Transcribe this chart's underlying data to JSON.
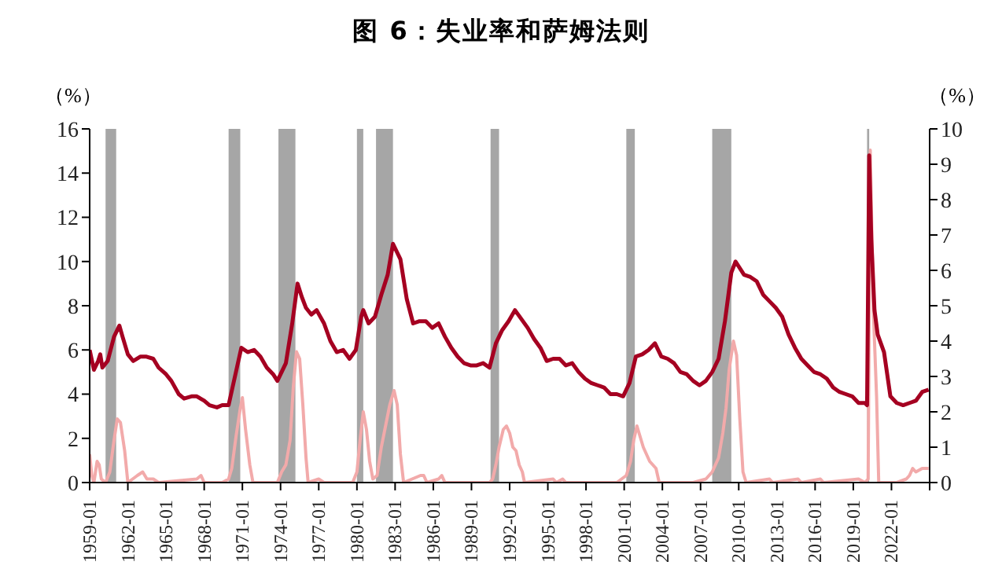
{
  "chart_data": {
    "type": "line",
    "title": "图 6：失业率和萨姆法则",
    "ylabel": "（%）",
    "y2label": "（%）",
    "xlim": [
      "1959-01",
      "2025-01"
    ],
    "xticks": [
      "1959-01",
      "1962-01",
      "1965-01",
      "1968-01",
      "1971-01",
      "1974-01",
      "1977-01",
      "1980-01",
      "1983-01",
      "1986-01",
      "1989-01",
      "1992-01",
      "1995-01",
      "1998-01",
      "2001-01",
      "2004-01",
      "2007-01",
      "2010-01",
      "2013-01",
      "2016-01",
      "2019-01",
      "2022-01",
      {
        "value": "2025-01",
        "label": null
      }
    ],
    "ylim": [
      0,
      16
    ],
    "yticks": [
      0,
      2,
      4,
      6,
      8,
      10,
      12,
      14,
      16
    ],
    "y2lim": [
      0,
      10
    ],
    "y2ticks": [
      0,
      1,
      2,
      3,
      4,
      5,
      6,
      7,
      8,
      9,
      10
    ],
    "grid": false,
    "bands": [
      {
        "axis": "x",
        "from": "1960-04",
        "to": "1961-02",
        "label": null,
        "color": "#a6a6a6"
      },
      {
        "axis": "x",
        "from": "1969-12",
        "to": "1970-11",
        "label": null,
        "color": "#a6a6a6"
      },
      {
        "axis": "x",
        "from": "1973-11",
        "to": "1975-03",
        "label": null,
        "color": "#a6a6a6"
      },
      {
        "axis": "x",
        "from": "1980-01",
        "to": "1980-07",
        "label": null,
        "color": "#a6a6a6"
      },
      {
        "axis": "x",
        "from": "1981-07",
        "to": "1982-11",
        "label": null,
        "color": "#a6a6a6"
      },
      {
        "axis": "x",
        "from": "1990-07",
        "to": "1991-03",
        "label": null,
        "color": "#a6a6a6"
      },
      {
        "axis": "x",
        "from": "2001-03",
        "to": "2001-11",
        "label": null,
        "color": "#a6a6a6"
      },
      {
        "axis": "x",
        "from": "2007-12",
        "to": "2009-06",
        "label": null,
        "color": "#a6a6a6"
      },
      {
        "axis": "x",
        "from": "2020-02",
        "to": "2020-04",
        "label": null,
        "color": "#a6a6a6"
      }
    ],
    "series": [
      {
        "axis": "y2",
        "color": "#f2aaaa",
        "x": [
          "1959-01",
          "1959-03",
          "1959-05",
          "1959-08",
          "1959-10",
          "1959-12",
          "1960-04",
          "1960-08",
          "1960-12",
          "1961-03",
          "1961-06",
          "1961-10",
          "1962-01",
          "1962-10",
          "1963-03",
          "1963-07",
          "1964-01",
          "1964-06",
          "1967-06",
          "1967-10",
          "1968-01",
          "1969-06",
          "1969-12",
          "1970-03",
          "1970-07",
          "1970-11",
          "1971-01",
          "1971-04",
          "1971-08",
          "1971-11",
          "1973-10",
          "1974-02",
          "1974-06",
          "1974-10",
          "1975-01",
          "1975-04",
          "1975-07",
          "1975-10",
          "1976-01",
          "1976-03",
          "1977-01",
          "1977-06",
          "1979-09",
          "1980-01",
          "1980-04",
          "1980-07",
          "1980-10",
          "1981-01",
          "1981-04",
          "1981-08",
          "1981-12",
          "1982-04",
          "1982-08",
          "1982-12",
          "1983-03",
          "1983-06",
          "1983-09",
          "1985-01",
          "1985-04",
          "1985-07",
          "1986-06",
          "1986-09",
          "1986-12",
          "1990-06",
          "1990-09",
          "1990-12",
          "1991-03",
          "1991-07",
          "1991-10",
          "1992-01",
          "1992-04",
          "1992-07",
          "1992-10",
          "1993-01",
          "1993-03",
          "1995-06",
          "1995-09",
          "1996-03",
          "1996-06",
          "2000-06",
          "2001-03",
          "2001-07",
          "2001-10",
          "2002-01",
          "2002-04",
          "2002-07",
          "2002-10",
          "2003-01",
          "2003-04",
          "2003-07",
          "2003-10",
          "2006-06",
          "2007-06",
          "2007-12",
          "2008-06",
          "2008-10",
          "2009-01",
          "2009-04",
          "2009-08",
          "2009-11",
          "2010-02",
          "2010-05",
          "2010-08",
          "2012-06",
          "2012-09",
          "2014-09",
          "2014-12",
          "2016-06",
          "2016-09",
          "2019-06",
          "2019-12",
          "2020-03",
          "2020-05",
          "2020-08",
          "2020-11",
          "2021-01",
          "2022-06",
          "2023-03",
          "2023-06",
          "2023-09",
          "2023-12",
          "2024-06",
          "2024-12"
        ],
        "values": [
          0.8,
          0.2,
          0,
          0.6,
          0.5,
          0.1,
          0,
          0.3,
          1.2,
          1.8,
          1.7,
          0.9,
          0,
          0.2,
          0.3,
          0.1,
          0.1,
          0,
          0.1,
          0.2,
          0,
          0,
          0.1,
          0.4,
          1.3,
          2.1,
          2.4,
          1.5,
          0.5,
          0,
          0,
          0.3,
          0.5,
          1.2,
          2.7,
          3.7,
          3.5,
          2.2,
          0.7,
          0,
          0.1,
          0,
          0,
          0.3,
          1.2,
          2.0,
          1.5,
          0.6,
          0.1,
          0.2,
          1.0,
          1.6,
          2.2,
          2.6,
          2.2,
          0.8,
          0,
          0.2,
          0.2,
          0,
          0.1,
          0.2,
          0,
          0,
          0.1,
          0.5,
          1.0,
          1.5,
          1.6,
          1.4,
          1.0,
          0.9,
          0.5,
          0.3,
          0,
          0.1,
          0,
          0.1,
          0,
          0,
          0.2,
          0.6,
          1.2,
          1.6,
          1.3,
          1.0,
          0.8,
          0.6,
          0.5,
          0.4,
          0,
          0,
          0.1,
          0.3,
          0.7,
          1.4,
          2.1,
          3.2,
          4.0,
          3.6,
          1.8,
          0.3,
          0,
          0.1,
          0,
          0.1,
          0,
          0.1,
          0,
          0.1,
          0,
          0.1,
          9.4,
          4.8,
          2.4,
          0,
          0,
          0.1,
          0.2,
          0.4,
          0.3,
          0.4,
          0.4
        ]
      },
      {
        "color": "#a50021",
        "x": [
          "1959-01",
          "1959-05",
          "1959-09",
          "1959-11",
          "1960-01",
          "1960-06",
          "1960-12",
          "1961-05",
          "1961-08",
          "1962-01",
          "1962-06",
          "1963-01",
          "1963-06",
          "1964-01",
          "1964-06",
          "1965-01",
          "1965-06",
          "1966-01",
          "1966-06",
          "1967-01",
          "1967-06",
          "1968-01",
          "1968-06",
          "1969-01",
          "1969-06",
          "1969-12",
          "1970-06",
          "1970-12",
          "1971-06",
          "1971-12",
          "1972-06",
          "1972-12",
          "1973-06",
          "1973-10",
          "1974-06",
          "1974-12",
          "1975-05",
          "1975-09",
          "1976-01",
          "1976-06",
          "1976-11",
          "1977-06",
          "1977-12",
          "1978-06",
          "1978-12",
          "1979-06",
          "1979-12",
          "1980-05",
          "1980-07",
          "1980-12",
          "1981-06",
          "1981-12",
          "1982-06",
          "1982-11",
          "1983-06",
          "1983-12",
          "1984-06",
          "1984-12",
          "1985-06",
          "1985-12",
          "1986-06",
          "1986-12",
          "1987-06",
          "1987-12",
          "1988-06",
          "1988-12",
          "1989-06",
          "1989-12",
          "1990-06",
          "1990-12",
          "1991-06",
          "1991-12",
          "1992-06",
          "1992-12",
          "1993-06",
          "1993-12",
          "1994-06",
          "1994-12",
          "1995-06",
          "1995-12",
          "1996-06",
          "1996-12",
          "1997-06",
          "1997-12",
          "1998-06",
          "1998-12",
          "1999-06",
          "1999-12",
          "2000-06",
          "2000-12",
          "2001-06",
          "2001-12",
          "2002-06",
          "2002-12",
          "2003-06",
          "2003-12",
          "2004-06",
          "2004-12",
          "2005-06",
          "2005-12",
          "2006-06",
          "2006-12",
          "2007-06",
          "2007-12",
          "2008-06",
          "2008-12",
          "2009-06",
          "2009-10",
          "2010-06",
          "2010-12",
          "2011-06",
          "2011-12",
          "2012-06",
          "2012-12",
          "2013-06",
          "2013-12",
          "2014-06",
          "2014-12",
          "2015-06",
          "2015-12",
          "2016-06",
          "2016-12",
          "2017-06",
          "2017-12",
          "2018-06",
          "2018-12",
          "2019-06",
          "2019-12",
          "2020-02",
          "2020-04",
          "2020-06",
          "2020-09",
          "2020-12",
          "2021-06",
          "2021-12",
          "2022-06",
          "2022-12",
          "2023-06",
          "2023-12",
          "2024-06",
          "2024-12"
        ],
        "values": [
          6.0,
          5.1,
          5.5,
          5.8,
          5.2,
          5.5,
          6.6,
          7.1,
          6.6,
          5.8,
          5.5,
          5.7,
          5.7,
          5.6,
          5.2,
          4.9,
          4.6,
          4.0,
          3.8,
          3.9,
          3.9,
          3.7,
          3.5,
          3.4,
          3.5,
          3.5,
          4.8,
          6.1,
          5.9,
          6.0,
          5.7,
          5.2,
          4.9,
          4.6,
          5.4,
          7.2,
          9.0,
          8.4,
          7.9,
          7.6,
          7.8,
          7.2,
          6.4,
          5.9,
          6.0,
          5.6,
          6.0,
          7.5,
          7.8,
          7.2,
          7.5,
          8.5,
          9.4,
          10.8,
          10.1,
          8.3,
          7.2,
          7.3,
          7.3,
          7.0,
          7.2,
          6.6,
          6.1,
          5.7,
          5.4,
          5.3,
          5.3,
          5.4,
          5.2,
          6.3,
          6.9,
          7.3,
          7.8,
          7.4,
          7.0,
          6.5,
          6.1,
          5.5,
          5.6,
          5.6,
          5.3,
          5.4,
          5.0,
          4.7,
          4.5,
          4.4,
          4.3,
          4.0,
          4.0,
          3.9,
          4.5,
          5.7,
          5.8,
          6.0,
          6.3,
          5.7,
          5.6,
          5.4,
          5.0,
          4.9,
          4.6,
          4.4,
          4.6,
          5.0,
          5.6,
          7.3,
          9.5,
          10.0,
          9.4,
          9.3,
          9.1,
          8.5,
          8.2,
          7.9,
          7.5,
          6.7,
          6.1,
          5.6,
          5.3,
          5.0,
          4.9,
          4.7,
          4.3,
          4.1,
          4.0,
          3.9,
          3.6,
          3.6,
          3.5,
          14.8,
          11.0,
          7.8,
          6.7,
          5.9,
          3.9,
          3.6,
          3.5,
          3.6,
          3.7,
          4.1,
          4.2
        ]
      }
    ]
  }
}
